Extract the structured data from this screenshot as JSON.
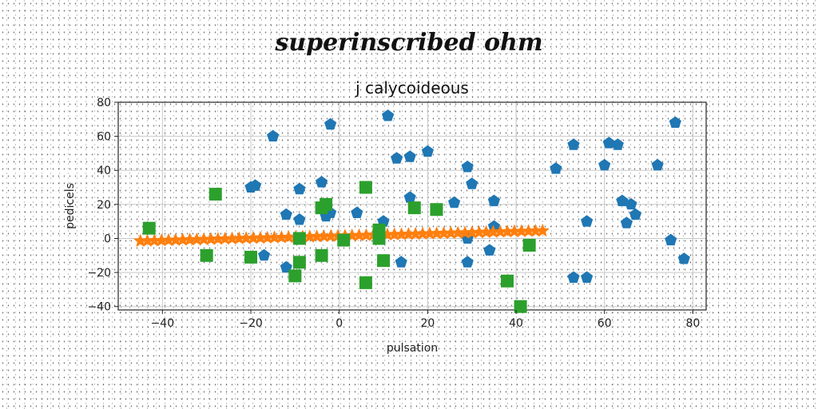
{
  "suptitle": "superinscribed ohm",
  "chart_data": {
    "type": "scatter",
    "title": "j calycoideous",
    "xlabel": "pulsation",
    "ylabel": "pedicels",
    "xlim": [
      -50,
      83
    ],
    "ylim": [
      -42,
      80
    ],
    "xticks": [
      -40,
      -20,
      0,
      20,
      40,
      60,
      80
    ],
    "yticks": [
      -40,
      -20,
      0,
      20,
      40,
      60,
      80
    ],
    "grid": true,
    "series": [
      {
        "marker": "pentagon",
        "color": "#1f77b4",
        "points": [
          [
            -15,
            60
          ],
          [
            -2,
            67
          ],
          [
            11,
            72
          ],
          [
            76,
            68
          ],
          [
            13,
            47
          ],
          [
            16,
            48
          ],
          [
            20,
            51
          ],
          [
            29,
            42
          ],
          [
            49,
            41
          ],
          [
            53,
            55
          ],
          [
            60,
            43
          ],
          [
            61,
            56
          ],
          [
            63,
            55
          ],
          [
            72,
            43
          ],
          [
            -20,
            30
          ],
          [
            -19,
            31
          ],
          [
            -9,
            29
          ],
          [
            -4,
            33
          ],
          [
            16,
            24
          ],
          [
            30,
            32
          ],
          [
            26,
            21
          ],
          [
            35,
            22
          ],
          [
            64,
            22
          ],
          [
            66,
            20
          ],
          [
            67,
            14
          ],
          [
            65,
            9
          ],
          [
            56,
            10
          ],
          [
            -12,
            14
          ],
          [
            -9,
            11
          ],
          [
            -3,
            13
          ],
          [
            -2,
            15
          ],
          [
            4,
            15
          ],
          [
            10,
            10
          ],
          [
            29,
            0
          ],
          [
            35,
            7
          ],
          [
            34,
            -7
          ],
          [
            29,
            -14
          ],
          [
            14,
            -14
          ],
          [
            -12,
            -17
          ],
          [
            -17,
            -10
          ],
          [
            53,
            -23
          ],
          [
            56,
            -23
          ],
          [
            75,
            -1
          ],
          [
            78,
            -12
          ]
        ]
      },
      {
        "marker": "star",
        "color": "#ff7f0e",
        "line_x": [
          -45,
          46
        ],
        "line_y": [
          -1.5,
          4.5
        ],
        "count": 58
      },
      {
        "marker": "square",
        "color": "#2ca02c",
        "points": [
          [
            -43,
            6
          ],
          [
            -28,
            26
          ],
          [
            -30,
            -10
          ],
          [
            -20,
            -11
          ],
          [
            -9,
            0
          ],
          [
            -9,
            -14
          ],
          [
            -10,
            -22
          ],
          [
            -4,
            18
          ],
          [
            -3,
            20
          ],
          [
            -4,
            -10
          ],
          [
            1,
            -1
          ],
          [
            6,
            30
          ],
          [
            6,
            -26
          ],
          [
            9,
            5
          ],
          [
            9,
            0
          ],
          [
            10,
            -13
          ],
          [
            17,
            18
          ],
          [
            22,
            17
          ],
          [
            38,
            -25
          ],
          [
            41,
            -40
          ],
          [
            43,
            -4
          ]
        ]
      }
    ]
  }
}
